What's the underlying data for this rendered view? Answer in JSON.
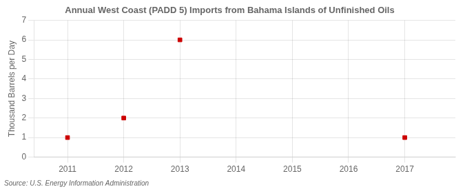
{
  "chart_data": {
    "type": "scatter",
    "title": "Annual West Coast (PADD 5) Imports from Bahama Islands of Unfinished Oils",
    "y_label": "Thousand Barrels per Day",
    "annotations": [
      "Source: U.S. Energy Information Administration"
    ],
    "x": [
      2011,
      2012,
      2013,
      2017
    ],
    "values": [
      1,
      2,
      6,
      1
    ],
    "color": "#cc0000",
    "marker": "square",
    "xlim": [
      2010.4,
      2017.9
    ],
    "xticks": [
      2011,
      2012,
      2013,
      2014,
      2015,
      2016,
      2017
    ],
    "ylim": [
      0,
      7
    ],
    "yticks": [
      0,
      1,
      2,
      3,
      4,
      5,
      6,
      7
    ],
    "grid": true
  }
}
